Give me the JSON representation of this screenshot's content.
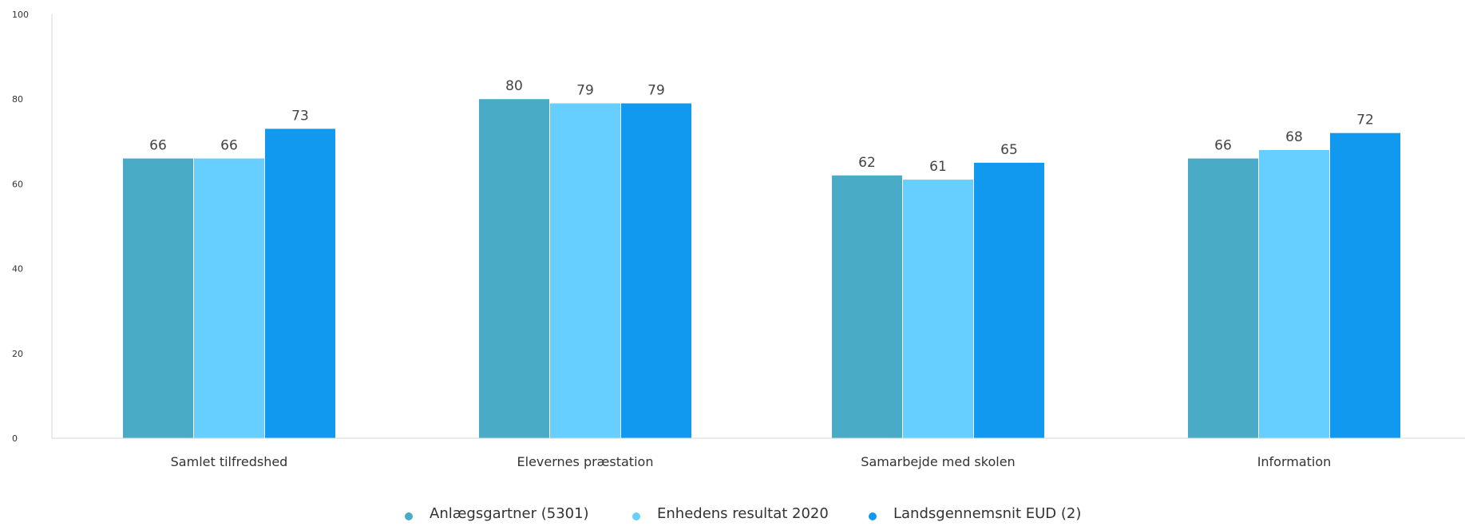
{
  "chart_data": {
    "type": "bar",
    "categories": [
      "Samlet tilfredshed",
      "Elevernes præstation",
      "Samarbejde med skolen",
      "Information"
    ],
    "series": [
      {
        "name": "Anlægsgartner (5301)",
        "values": [
          66,
          80,
          62,
          66
        ],
        "color": "#4aabc6"
      },
      {
        "name": "Enhedens resultat 2020",
        "values": [
          66,
          79,
          61,
          68
        ],
        "color": "#66cfff"
      },
      {
        "name": "Landsgennemsnit EUD (2)",
        "values": [
          73,
          79,
          65,
          72
        ],
        "color": "#1199f0"
      }
    ],
    "data_labels": [
      [
        "66",
        "80",
        "62",
        "66"
      ],
      [
        "66",
        "79",
        "61",
        "68"
      ],
      [
        "73",
        "79",
        "65",
        "72"
      ]
    ],
    "yticks": [
      0,
      20,
      40,
      60,
      80,
      100
    ],
    "ylim": [
      0,
      100
    ],
    "grid": false,
    "legend_position": "bottom-center"
  }
}
